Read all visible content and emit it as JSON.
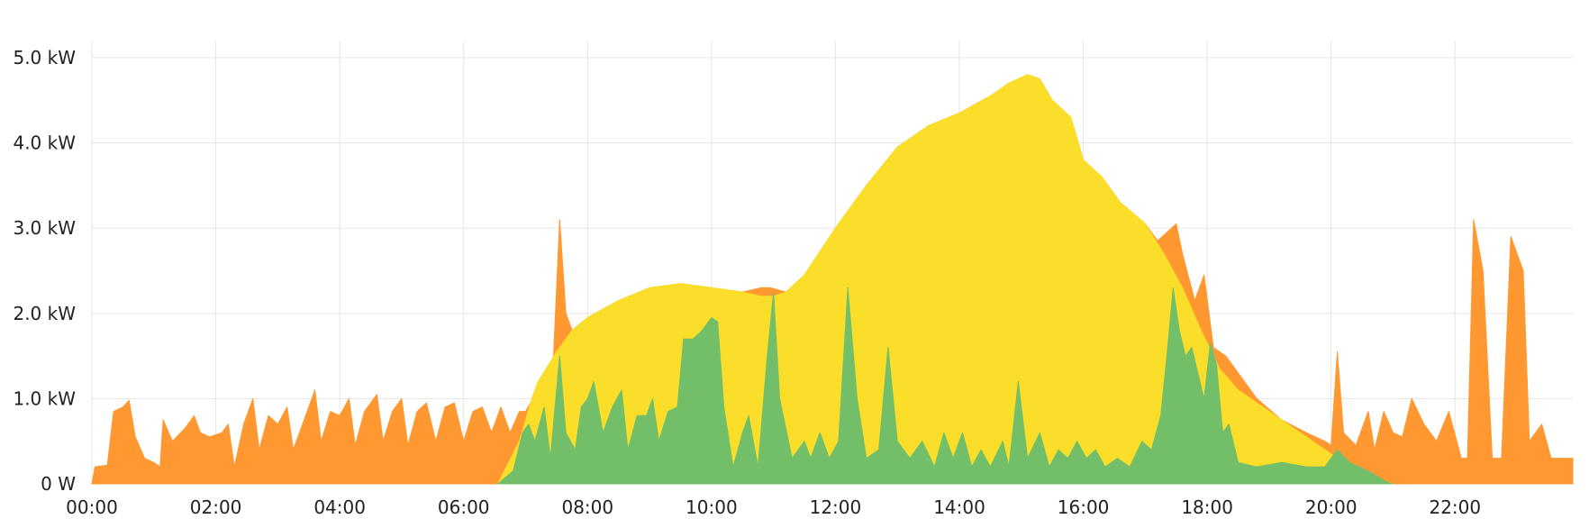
{
  "chart_data": {
    "type": "area",
    "title": "",
    "xlabel": "",
    "ylabel": "",
    "xlim": [
      0,
      23.9
    ],
    "ylim": [
      0,
      5.2
    ],
    "grid": true,
    "legend": "none",
    "x_ticks": [
      {
        "value": 0,
        "label": "00:00"
      },
      {
        "value": 2,
        "label": "02:00"
      },
      {
        "value": 4,
        "label": "04:00"
      },
      {
        "value": 6,
        "label": "06:00"
      },
      {
        "value": 8,
        "label": "08:00"
      },
      {
        "value": 10,
        "label": "10:00"
      },
      {
        "value": 12,
        "label": "12:00"
      },
      {
        "value": 14,
        "label": "14:00"
      },
      {
        "value": 16,
        "label": "16:00"
      },
      {
        "value": 18,
        "label": "18:00"
      },
      {
        "value": 20,
        "label": "20:00"
      },
      {
        "value": 22,
        "label": "22:00"
      }
    ],
    "y_ticks": [
      {
        "value": 0,
        "label": "0 W"
      },
      {
        "value": 1,
        "label": "1.0 kW"
      },
      {
        "value": 2,
        "label": "2.0 kW"
      },
      {
        "value": 3,
        "label": "3.0 kW"
      },
      {
        "value": 4,
        "label": "4.0 kW"
      },
      {
        "value": 5,
        "label": "5.0 kW"
      }
    ],
    "colors": {
      "orange": "#ff9830",
      "yellow": "#fade2a",
      "green": "#73bf69",
      "grid": "#e6e6e6",
      "text": "#222222"
    },
    "series": [
      {
        "color": "orange",
        "points": [
          [
            0,
            0
          ],
          [
            0.05,
            0.2
          ],
          [
            0.25,
            0.22
          ],
          [
            0.35,
            0.85
          ],
          [
            0.5,
            0.9
          ],
          [
            0.6,
            0.98
          ],
          [
            0.7,
            0.55
          ],
          [
            0.85,
            0.3
          ],
          [
            1.0,
            0.25
          ],
          [
            1.1,
            0.2
          ],
          [
            1.15,
            0.75
          ],
          [
            1.3,
            0.5
          ],
          [
            1.5,
            0.65
          ],
          [
            1.65,
            0.8
          ],
          [
            1.75,
            0.6
          ],
          [
            1.9,
            0.55
          ],
          [
            2.1,
            0.6
          ],
          [
            2.2,
            0.7
          ],
          [
            2.3,
            0.2
          ],
          [
            2.45,
            0.7
          ],
          [
            2.6,
            1.0
          ],
          [
            2.7,
            0.4
          ],
          [
            2.85,
            0.8
          ],
          [
            3.0,
            0.7
          ],
          [
            3.15,
            0.9
          ],
          [
            3.25,
            0.4
          ],
          [
            3.4,
            0.7
          ],
          [
            3.6,
            1.1
          ],
          [
            3.7,
            0.5
          ],
          [
            3.85,
            0.85
          ],
          [
            4.0,
            0.8
          ],
          [
            4.15,
            1.0
          ],
          [
            4.25,
            0.45
          ],
          [
            4.4,
            0.85
          ],
          [
            4.6,
            1.05
          ],
          [
            4.7,
            0.5
          ],
          [
            4.85,
            0.85
          ],
          [
            5.0,
            1.0
          ],
          [
            5.1,
            0.45
          ],
          [
            5.25,
            0.85
          ],
          [
            5.4,
            0.95
          ],
          [
            5.55,
            0.5
          ],
          [
            5.7,
            0.9
          ],
          [
            5.85,
            0.95
          ],
          [
            6.0,
            0.5
          ],
          [
            6.15,
            0.85
          ],
          [
            6.3,
            0.9
          ],
          [
            6.45,
            0.6
          ],
          [
            6.6,
            0.9
          ],
          [
            6.75,
            0.6
          ],
          [
            6.9,
            0.85
          ],
          [
            7.0,
            0.85
          ],
          [
            7.2,
            1.1
          ],
          [
            7.45,
            1.5
          ],
          [
            7.55,
            3.1
          ],
          [
            7.65,
            2.0
          ],
          [
            7.75,
            1.8
          ],
          [
            8.0,
            1.95
          ],
          [
            8.5,
            2.15
          ],
          [
            9.0,
            2.3
          ],
          [
            9.5,
            2.35
          ],
          [
            10.0,
            2.3
          ],
          [
            10.5,
            2.25
          ],
          [
            10.8,
            2.3
          ],
          [
            10.95,
            2.3
          ],
          [
            11.2,
            2.25
          ],
          [
            11.5,
            2.45
          ],
          [
            12.0,
            3.0
          ],
          [
            12.5,
            3.5
          ],
          [
            13.0,
            3.95
          ],
          [
            13.5,
            4.2
          ],
          [
            14.0,
            4.35
          ],
          [
            14.5,
            4.55
          ],
          [
            14.8,
            4.7
          ],
          [
            15.1,
            4.8
          ],
          [
            15.3,
            4.75
          ],
          [
            15.5,
            4.5
          ],
          [
            15.8,
            4.3
          ],
          [
            16.0,
            3.8
          ],
          [
            16.3,
            3.6
          ],
          [
            16.6,
            3.3
          ],
          [
            17.0,
            3.05
          ],
          [
            17.2,
            2.85
          ],
          [
            17.35,
            2.95
          ],
          [
            17.5,
            3.05
          ],
          [
            17.6,
            2.7
          ],
          [
            17.8,
            2.15
          ],
          [
            17.95,
            2.45
          ],
          [
            18.1,
            1.6
          ],
          [
            18.3,
            1.5
          ],
          [
            18.5,
            1.3
          ],
          [
            18.8,
            1.0
          ],
          [
            19.2,
            0.75
          ],
          [
            19.6,
            0.6
          ],
          [
            19.9,
            0.5
          ],
          [
            20.0,
            0.45
          ],
          [
            20.1,
            1.55
          ],
          [
            20.2,
            0.6
          ],
          [
            20.4,
            0.45
          ],
          [
            20.6,
            0.85
          ],
          [
            20.7,
            0.4
          ],
          [
            20.85,
            0.85
          ],
          [
            21.0,
            0.6
          ],
          [
            21.15,
            0.55
          ],
          [
            21.3,
            1.0
          ],
          [
            21.5,
            0.7
          ],
          [
            21.7,
            0.5
          ],
          [
            21.9,
            0.85
          ],
          [
            22.1,
            0.3
          ],
          [
            22.2,
            0.3
          ],
          [
            22.3,
            3.1
          ],
          [
            22.45,
            2.5
          ],
          [
            22.6,
            0.3
          ],
          [
            22.75,
            0.3
          ],
          [
            22.9,
            2.9
          ],
          [
            23.1,
            2.5
          ],
          [
            23.2,
            0.5
          ],
          [
            23.4,
            0.7
          ],
          [
            23.55,
            0.3
          ],
          [
            23.7,
            0.3
          ],
          [
            23.9,
            0.3
          ],
          [
            23.9,
            0
          ]
        ]
      },
      {
        "color": "yellow",
        "points": [
          [
            6.55,
            0
          ],
          [
            6.9,
            0.5
          ],
          [
            7.1,
            1.0
          ],
          [
            7.2,
            1.2
          ],
          [
            7.5,
            1.55
          ],
          [
            7.75,
            1.8
          ],
          [
            8.0,
            1.95
          ],
          [
            8.5,
            2.15
          ],
          [
            9.0,
            2.3
          ],
          [
            9.5,
            2.35
          ],
          [
            10.0,
            2.3
          ],
          [
            10.5,
            2.25
          ],
          [
            10.8,
            2.2
          ],
          [
            11.0,
            2.2
          ],
          [
            11.2,
            2.25
          ],
          [
            11.5,
            2.45
          ],
          [
            12.0,
            3.0
          ],
          [
            12.5,
            3.5
          ],
          [
            13.0,
            3.95
          ],
          [
            13.5,
            4.2
          ],
          [
            14.0,
            4.35
          ],
          [
            14.5,
            4.55
          ],
          [
            14.8,
            4.7
          ],
          [
            15.1,
            4.8
          ],
          [
            15.3,
            4.75
          ],
          [
            15.5,
            4.5
          ],
          [
            15.8,
            4.3
          ],
          [
            16.0,
            3.8
          ],
          [
            16.3,
            3.6
          ],
          [
            16.6,
            3.3
          ],
          [
            17.0,
            3.05
          ],
          [
            17.3,
            2.7
          ],
          [
            17.6,
            2.3
          ],
          [
            17.9,
            1.8
          ],
          [
            18.2,
            1.35
          ],
          [
            18.5,
            1.1
          ],
          [
            18.8,
            0.95
          ],
          [
            19.2,
            0.75
          ],
          [
            19.6,
            0.55
          ],
          [
            20.0,
            0.35
          ],
          [
            20.5,
            0.15
          ],
          [
            20.9,
            0.02
          ],
          [
            21.0,
            0
          ]
        ]
      },
      {
        "color": "green",
        "points": [
          [
            6.55,
            0
          ],
          [
            6.8,
            0.15
          ],
          [
            6.95,
            0.6
          ],
          [
            7.05,
            0.7
          ],
          [
            7.15,
            0.5
          ],
          [
            7.3,
            0.9
          ],
          [
            7.4,
            0.3
          ],
          [
            7.55,
            1.5
          ],
          [
            7.65,
            0.6
          ],
          [
            7.8,
            0.4
          ],
          [
            7.9,
            0.9
          ],
          [
            8.0,
            1.0
          ],
          [
            8.1,
            1.2
          ],
          [
            8.25,
            0.6
          ],
          [
            8.4,
            0.9
          ],
          [
            8.55,
            1.1
          ],
          [
            8.65,
            0.4
          ],
          [
            8.8,
            0.8
          ],
          [
            8.95,
            0.8
          ],
          [
            9.05,
            1.0
          ],
          [
            9.15,
            0.5
          ],
          [
            9.3,
            0.85
          ],
          [
            9.45,
            0.9
          ],
          [
            9.55,
            1.7
          ],
          [
            9.7,
            1.7
          ],
          [
            9.85,
            1.8
          ],
          [
            10.0,
            1.95
          ],
          [
            10.1,
            1.9
          ],
          [
            10.2,
            0.9
          ],
          [
            10.35,
            0.2
          ],
          [
            10.5,
            0.6
          ],
          [
            10.6,
            0.8
          ],
          [
            10.75,
            0.2
          ],
          [
            10.9,
            1.5
          ],
          [
            11.0,
            2.25
          ],
          [
            11.1,
            1.0
          ],
          [
            11.3,
            0.3
          ],
          [
            11.5,
            0.5
          ],
          [
            11.6,
            0.3
          ],
          [
            11.75,
            0.6
          ],
          [
            11.9,
            0.3
          ],
          [
            12.05,
            0.5
          ],
          [
            12.2,
            2.3
          ],
          [
            12.35,
            1.0
          ],
          [
            12.5,
            0.3
          ],
          [
            12.7,
            0.4
          ],
          [
            12.85,
            1.6
          ],
          [
            13.0,
            0.5
          ],
          [
            13.2,
            0.3
          ],
          [
            13.4,
            0.5
          ],
          [
            13.6,
            0.2
          ],
          [
            13.75,
            0.6
          ],
          [
            13.9,
            0.3
          ],
          [
            14.05,
            0.6
          ],
          [
            14.2,
            0.2
          ],
          [
            14.35,
            0.4
          ],
          [
            14.5,
            0.2
          ],
          [
            14.7,
            0.5
          ],
          [
            14.8,
            0.2
          ],
          [
            14.95,
            1.2
          ],
          [
            15.1,
            0.3
          ],
          [
            15.3,
            0.6
          ],
          [
            15.45,
            0.2
          ],
          [
            15.6,
            0.4
          ],
          [
            15.75,
            0.3
          ],
          [
            15.9,
            0.5
          ],
          [
            16.05,
            0.3
          ],
          [
            16.2,
            0.4
          ],
          [
            16.35,
            0.2
          ],
          [
            16.55,
            0.3
          ],
          [
            16.75,
            0.2
          ],
          [
            16.95,
            0.5
          ],
          [
            17.1,
            0.4
          ],
          [
            17.25,
            0.8
          ],
          [
            17.35,
            1.5
          ],
          [
            17.45,
            2.3
          ],
          [
            17.55,
            1.8
          ],
          [
            17.65,
            1.5
          ],
          [
            17.75,
            1.6
          ],
          [
            17.85,
            1.3
          ],
          [
            17.95,
            1.0
          ],
          [
            18.05,
            1.65
          ],
          [
            18.15,
            1.4
          ],
          [
            18.25,
            0.6
          ],
          [
            18.35,
            0.7
          ],
          [
            18.5,
            0.25
          ],
          [
            18.8,
            0.2
          ],
          [
            19.2,
            0.25
          ],
          [
            19.6,
            0.2
          ],
          [
            19.9,
            0.2
          ],
          [
            20.0,
            0.3
          ],
          [
            20.1,
            0.4
          ],
          [
            20.3,
            0.25
          ],
          [
            20.6,
            0.15
          ],
          [
            20.9,
            0.02
          ],
          [
            21.0,
            0
          ]
        ]
      }
    ]
  }
}
